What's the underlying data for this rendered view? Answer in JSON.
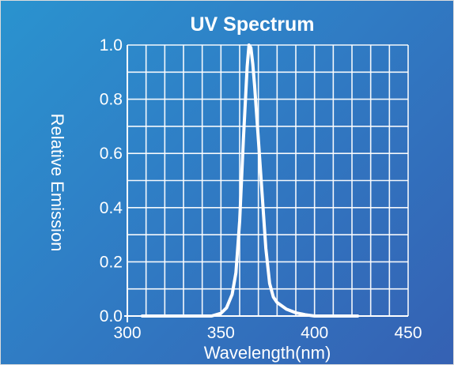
{
  "chart_data": {
    "type": "line",
    "title": "UV Spectrum",
    "xlabel": "Wavelength(nm)",
    "ylabel": "Relative Emission",
    "xlim": [
      300,
      450
    ],
    "ylim": [
      0,
      1.0
    ],
    "x_ticks": [
      "300",
      "350",
      "400",
      "450"
    ],
    "y_ticks": [
      "0.0",
      "0.2",
      "0.4",
      "0.6",
      "0.8",
      "1.0"
    ],
    "grid": true,
    "series_color": "#ffffff",
    "series": [
      {
        "x": [
          308,
          330,
          345,
          350,
          353,
          356,
          358,
          360,
          362,
          364,
          365,
          366,
          367,
          368,
          370,
          372,
          374,
          376,
          378,
          380,
          385,
          390,
          395,
          400,
          410,
          423
        ],
        "y": [
          0.0,
          0.0,
          0.0,
          0.01,
          0.03,
          0.08,
          0.16,
          0.35,
          0.65,
          0.92,
          1.0,
          0.99,
          0.93,
          0.85,
          0.65,
          0.45,
          0.25,
          0.12,
          0.07,
          0.05,
          0.025,
          0.012,
          0.005,
          0.0,
          0.0,
          0.0
        ]
      }
    ]
  }
}
